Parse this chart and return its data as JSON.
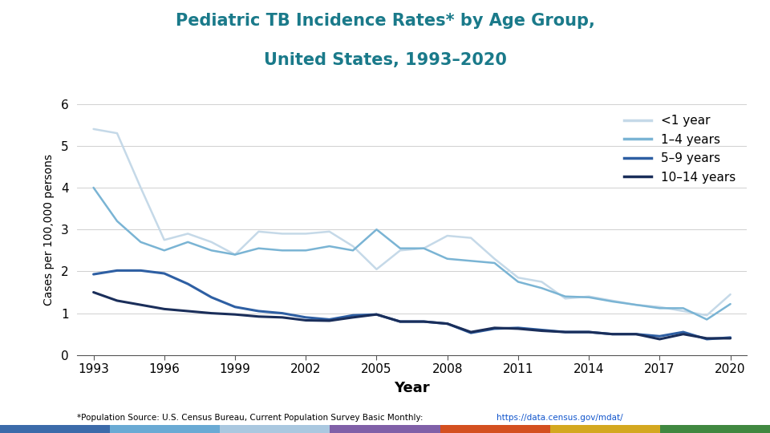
{
  "title_line1": "Pediatric TB Incidence Rates* by Age Group,",
  "title_line2": "United States, 1993–2020",
  "title_color": "#1a7a8a",
  "xlabel": "Year",
  "ylabel": "Cases per 100,000 persons",
  "ylim": [
    0,
    6
  ],
  "yticks": [
    0,
    1,
    2,
    3,
    4,
    5,
    6
  ],
  "xticks": [
    1993,
    1996,
    1999,
    2002,
    2005,
    2008,
    2011,
    2014,
    2017,
    2020
  ],
  "years": [
    1993,
    1994,
    1995,
    1996,
    1997,
    1998,
    1999,
    2000,
    2001,
    2002,
    2003,
    2004,
    2005,
    2006,
    2007,
    2008,
    2009,
    2010,
    2011,
    2012,
    2013,
    2014,
    2015,
    2016,
    2017,
    2018,
    2019,
    2020
  ],
  "series": {
    "lt1": {
      "label": "<1 year",
      "color": "#c5d9e8",
      "linewidth": 1.8,
      "values": [
        5.4,
        5.3,
        4.0,
        2.75,
        2.9,
        2.7,
        2.4,
        2.95,
        2.9,
        2.9,
        2.95,
        2.6,
        2.05,
        2.5,
        2.55,
        2.85,
        2.8,
        2.3,
        1.85,
        1.75,
        1.35,
        1.4,
        1.3,
        1.2,
        1.15,
        1.05,
        0.95,
        1.45
      ]
    },
    "1to4": {
      "label": "1–4 years",
      "color": "#7ab4d4",
      "linewidth": 1.8,
      "values": [
        4.0,
        3.2,
        2.7,
        2.5,
        2.7,
        2.5,
        2.4,
        2.55,
        2.5,
        2.5,
        2.6,
        2.5,
        3.0,
        2.55,
        2.55,
        2.3,
        2.25,
        2.2,
        1.75,
        1.6,
        1.4,
        1.38,
        1.28,
        1.2,
        1.12,
        1.12,
        0.85,
        1.22
      ]
    },
    "5to9": {
      "label": "5–9 years",
      "color": "#2e5fa3",
      "linewidth": 2.2,
      "values": [
        1.93,
        2.02,
        2.02,
        1.95,
        1.7,
        1.38,
        1.15,
        1.05,
        1.0,
        0.9,
        0.85,
        0.95,
        0.97,
        0.8,
        0.8,
        0.75,
        0.53,
        0.63,
        0.65,
        0.6,
        0.55,
        0.55,
        0.5,
        0.5,
        0.45,
        0.55,
        0.38,
        0.42
      ]
    },
    "10to14": {
      "label": "10–14 years",
      "color": "#1a2e5a",
      "linewidth": 2.2,
      "values": [
        1.5,
        1.3,
        1.2,
        1.1,
        1.05,
        1.0,
        0.97,
        0.92,
        0.9,
        0.83,
        0.82,
        0.9,
        0.97,
        0.8,
        0.8,
        0.75,
        0.55,
        0.65,
        0.63,
        0.58,
        0.55,
        0.55,
        0.5,
        0.5,
        0.38,
        0.5,
        0.4,
        0.4
      ]
    }
  },
  "footnote_plain": "*Population Source: U.S. Census Bureau, Current Population Survey Basic Monthly: ",
  "footnote_url": "https://data.census.gov/mdat/",
  "background_color": "#ffffff",
  "grid_color": "#d0d0d0",
  "bottom_bar_colors": [
    "#3c6baa",
    "#6aaad4",
    "#aac8e0",
    "#8060a8",
    "#d45020",
    "#d4a820",
    "#408840"
  ],
  "bottom_bar_widths": [
    0.16,
    0.14,
    0.14,
    0.14,
    0.14,
    0.14,
    0.14
  ]
}
